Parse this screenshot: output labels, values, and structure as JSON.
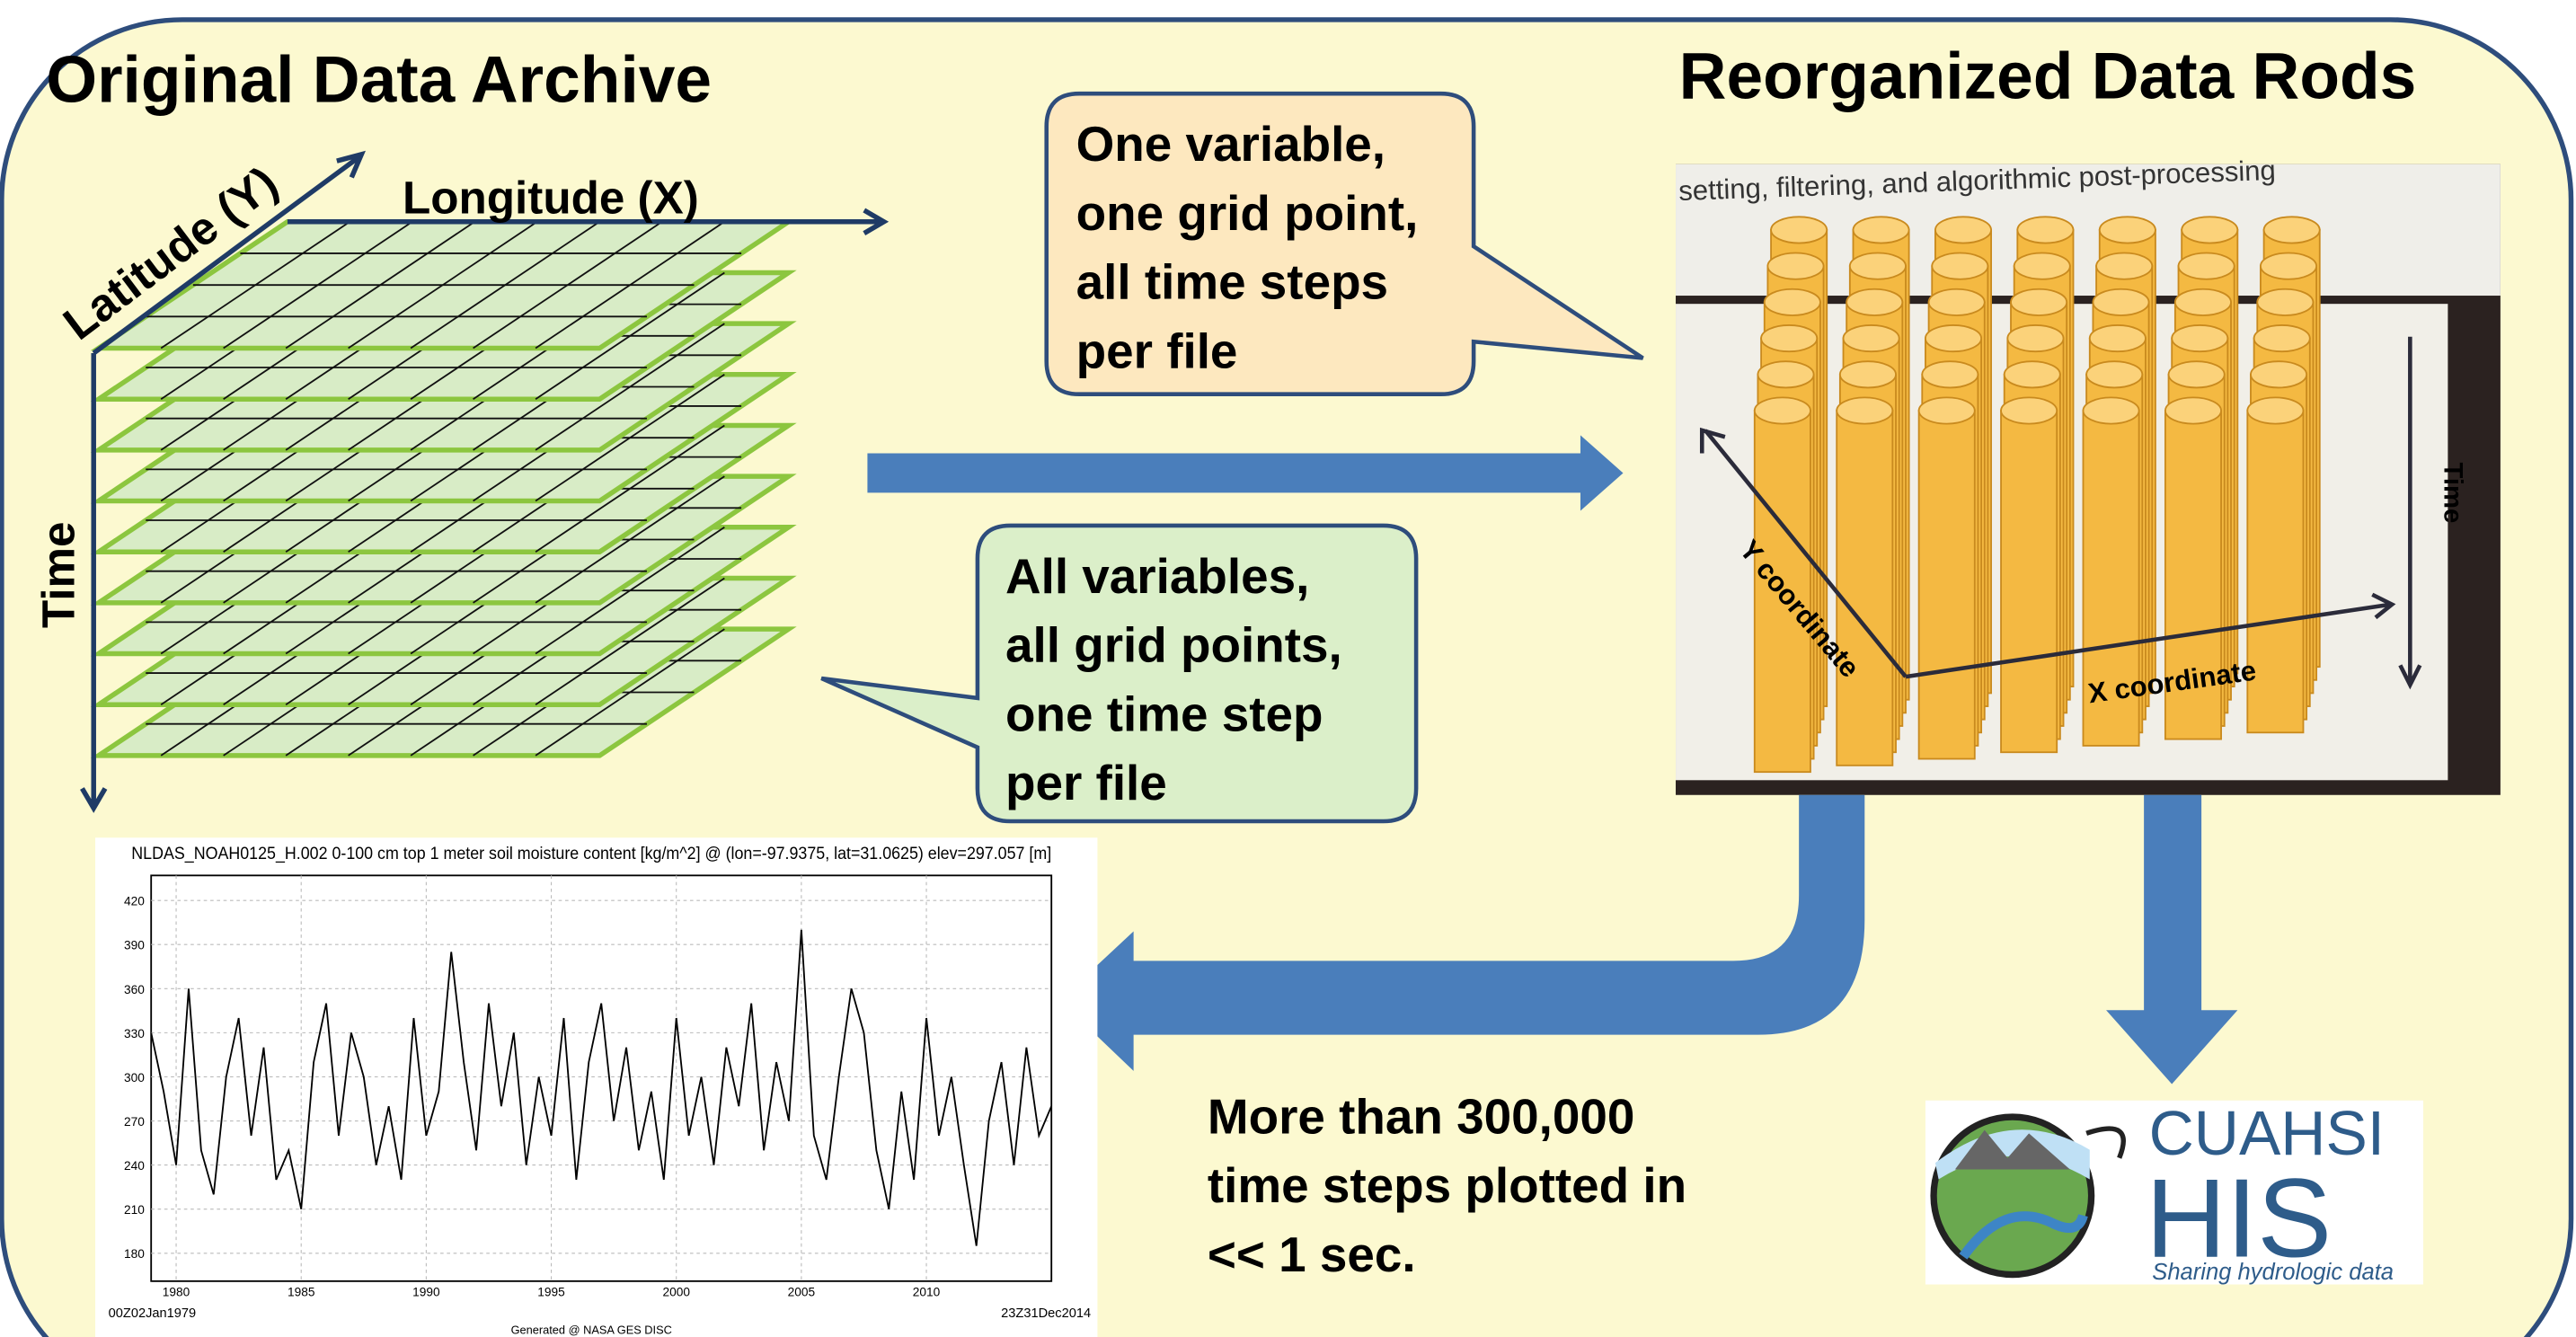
{
  "left_title": "Original Data Archive",
  "right_title": "Reorganized Data Rods",
  "axes": {
    "latitude": "Latitude (Y)",
    "longitude": "Longitude (X)",
    "time": "Time"
  },
  "callouts": [
    {
      "lines": [
        "One variable,",
        "one grid point,",
        "all time steps",
        "per file"
      ]
    },
    {
      "lines": [
        "All variables,",
        "all grid points,",
        "one time step",
        "per file"
      ]
    }
  ],
  "photo": {
    "caption": "setting, filtering, and algorithmic post-processing",
    "time_label": "Time",
    "y_label": "Y coordinate",
    "x_label": "X coordinate"
  },
  "summary": {
    "lines": [
      "More than 300,000",
      "time steps plotted in",
      "<< 1 sec."
    ]
  },
  "logo": {
    "name": "CUAHSI",
    "system": "HIS",
    "tagline": "Sharing hydrologic data"
  },
  "chart_data": {
    "type": "line",
    "title": "NLDAS_NOAH0125_H.002 0-100 cm top 1 meter soil moisture content [kg/m^2] @ (lon=-97.9375, lat=31.0625) elev=297.057 [m]",
    "x": [
      1979,
      1979.5,
      1980,
      1980.5,
      1981,
      1981.5,
      1982,
      1982.5,
      1983,
      1983.5,
      1984,
      1984.5,
      1985,
      1985.5,
      1986,
      1986.5,
      1987,
      1987.5,
      1988,
      1988.5,
      1989,
      1989.5,
      1990,
      1990.5,
      1991,
      1991.5,
      1992,
      1992.5,
      1993,
      1993.5,
      1994,
      1994.5,
      1995,
      1995.5,
      1996,
      1996.5,
      1997,
      1997.5,
      1998,
      1998.5,
      1999,
      1999.5,
      2000,
      2000.5,
      2001,
      2001.5,
      2002,
      2002.5,
      2003,
      2003.5,
      2004,
      2004.5,
      2005,
      2005.5,
      2006,
      2006.5,
      2007,
      2007.5,
      2008,
      2008.5,
      2009,
      2009.5,
      2010,
      2010.5,
      2011,
      2011.5,
      2012,
      2012.5,
      2013,
      2013.5,
      2014,
      2014.5,
      2015
    ],
    "values": [
      330,
      290,
      240,
      360,
      250,
      220,
      300,
      340,
      260,
      320,
      230,
      250,
      210,
      310,
      350,
      260,
      330,
      300,
      240,
      280,
      230,
      340,
      260,
      290,
      385,
      310,
      250,
      350,
      280,
      330,
      240,
      300,
      260,
      340,
      230,
      310,
      350,
      270,
      320,
      250,
      290,
      230,
      340,
      260,
      300,
      240,
      320,
      280,
      350,
      250,
      310,
      270,
      400,
      260,
      230,
      300,
      360,
      330,
      250,
      210,
      290,
      230,
      340,
      260,
      300,
      240,
      185,
      270,
      310,
      240,
      320,
      260,
      280
    ],
    "color": "#000000",
    "xlim": [
      1979,
      2015
    ],
    "xticks": [
      1980,
      1985,
      1990,
      1995,
      2000,
      2005,
      2010
    ],
    "ylim": [
      161,
      437
    ],
    "yticks": [
      180,
      210,
      240,
      270,
      300,
      330,
      360,
      390,
      420
    ],
    "grid": true,
    "start_label": "00Z02Jan1979",
    "end_label": "23Z31Dec2014",
    "credit": "Generated @ NASA GES DISC"
  }
}
